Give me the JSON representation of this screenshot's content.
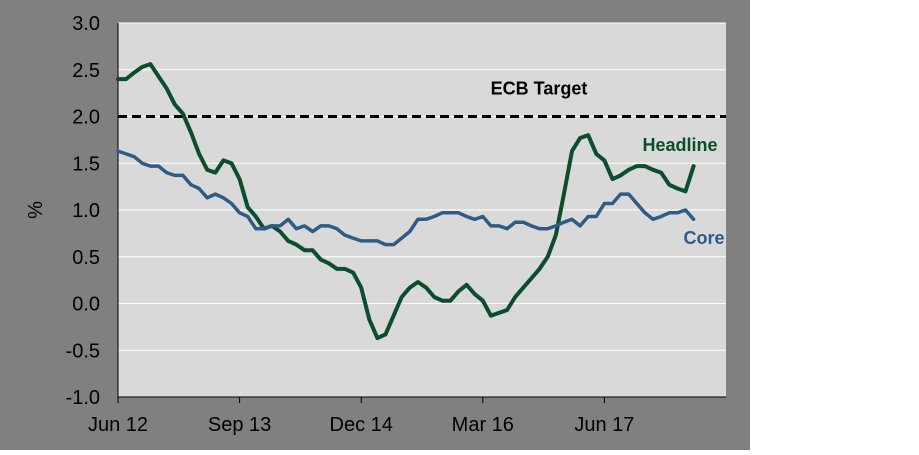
{
  "chart_data": {
    "type": "line",
    "title": "",
    "xlabel": "",
    "ylabel": "%",
    "ylim": [
      -1.0,
      3.0
    ],
    "y_ticks": [
      "3.0",
      "2.5",
      "2.0",
      "1.5",
      "1.0",
      "0.5",
      "0.0",
      "-0.5",
      "-1.0"
    ],
    "y_tick_values": [
      3.0,
      2.5,
      2.0,
      1.5,
      1.0,
      0.5,
      0.0,
      -0.5,
      -1.0
    ],
    "x_range": [
      "2012-06",
      "2018-09"
    ],
    "x_ticks": [
      {
        "label": "Jun 12",
        "date": "2012-06"
      },
      {
        "label": "Sep 13",
        "date": "2013-09"
      },
      {
        "label": "Dec 14",
        "date": "2014-12"
      },
      {
        "label": "Mar 16",
        "date": "2016-03"
      },
      {
        "label": "Jun 17",
        "date": "2017-06"
      }
    ],
    "grid": true,
    "reference_line": {
      "name": "ECB Target",
      "value": 2.0,
      "style": "dashed",
      "color": "#000000"
    },
    "series": [
      {
        "name": "Headline",
        "color": "#0b4d2c",
        "start": "2012-06",
        "values": [
          2.4,
          2.4,
          2.47,
          2.53,
          2.56,
          2.43,
          2.3,
          2.13,
          2.03,
          1.83,
          1.6,
          1.43,
          1.4,
          1.53,
          1.5,
          1.33,
          1.03,
          0.93,
          0.8,
          0.83,
          0.77,
          0.67,
          0.63,
          0.57,
          0.57,
          0.47,
          0.43,
          0.37,
          0.37,
          0.33,
          0.17,
          -0.17,
          -0.37,
          -0.33,
          -0.13,
          0.07,
          0.17,
          0.23,
          0.17,
          0.07,
          0.03,
          0.03,
          0.13,
          0.2,
          0.1,
          0.03,
          -0.13,
          -0.1,
          -0.07,
          0.07,
          0.17,
          0.27,
          0.37,
          0.5,
          0.73,
          1.17,
          1.63,
          1.77,
          1.8,
          1.6,
          1.53,
          1.33,
          1.37,
          1.43,
          1.47,
          1.47,
          1.43,
          1.4,
          1.27,
          1.23,
          1.2,
          1.47
        ]
      },
      {
        "name": "Core",
        "color": "#2e5c86",
        "start": "2012-06",
        "values": [
          1.63,
          1.6,
          1.57,
          1.5,
          1.47,
          1.47,
          1.4,
          1.37,
          1.37,
          1.27,
          1.23,
          1.13,
          1.17,
          1.13,
          1.07,
          0.97,
          0.93,
          0.8,
          0.8,
          0.83,
          0.83,
          0.9,
          0.8,
          0.83,
          0.77,
          0.83,
          0.83,
          0.8,
          0.73,
          0.7,
          0.67,
          0.67,
          0.67,
          0.63,
          0.63,
          0.7,
          0.77,
          0.9,
          0.9,
          0.93,
          0.97,
          0.97,
          0.97,
          0.93,
          0.9,
          0.93,
          0.83,
          0.83,
          0.8,
          0.87,
          0.87,
          0.83,
          0.8,
          0.8,
          0.83,
          0.87,
          0.9,
          0.83,
          0.93,
          0.93,
          1.07,
          1.07,
          1.17,
          1.17,
          1.07,
          0.97,
          0.9,
          0.93,
          0.97,
          0.97,
          1.0,
          0.9
        ]
      }
    ]
  },
  "colors": {
    "plot_background": "#d9d9d9",
    "outer_background": "#808080",
    "gridline": "#ffffff"
  }
}
